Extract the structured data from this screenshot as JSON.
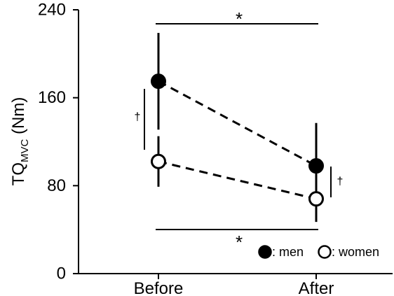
{
  "chart_data": {
    "type": "line",
    "categories": [
      "Before",
      "After"
    ],
    "series": [
      {
        "name": "men",
        "values": [
          175,
          98
        ],
        "error": [
          44,
          39
        ],
        "marker": "filled-circle",
        "color": "#000000"
      },
      {
        "name": "women",
        "values": [
          102,
          68
        ],
        "error": [
          23,
          21
        ],
        "marker": "open-circle",
        "color": "#000000"
      }
    ],
    "ylabel_main": "TQ",
    "ylabel_sub": "MVC",
    "ylabel_unit": " (Nm)",
    "ylim": [
      0,
      240
    ],
    "yticks": [
      "0",
      "80",
      "160",
      "240"
    ],
    "grid": false,
    "legend_placement": "bottom-right",
    "legend": [
      {
        "marker": "filled-circle",
        "label": ": men"
      },
      {
        "marker": "open-circle",
        "label": ": women"
      }
    ],
    "annotations": {
      "top_bracket_symbol": "*",
      "bottom_bracket_symbol": "*",
      "before_dagger": "†",
      "after_dagger": "†"
    }
  }
}
